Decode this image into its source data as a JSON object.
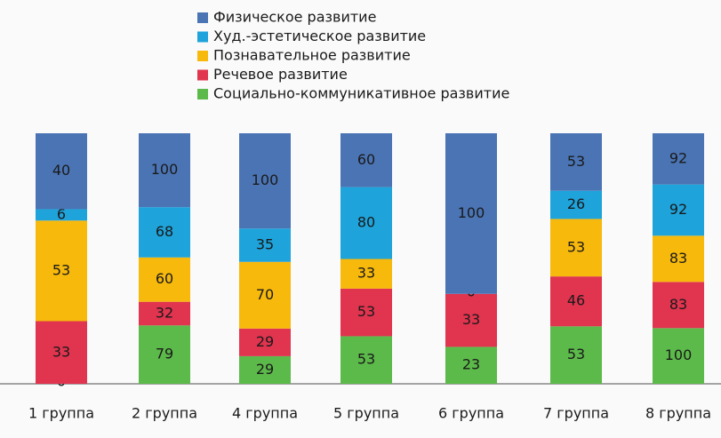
{
  "chart_data": {
    "type": "bar",
    "stack": "percent",
    "categories": [
      "1 группа",
      "2 группа",
      "4 группа",
      "5 группа",
      "6 группа",
      "7 группа",
      "8 группа"
    ],
    "series": [
      {
        "name": "Физическое развитие",
        "color": "#4a74b4",
        "values": [
          40,
          100,
          100,
          60,
          100,
          53,
          92
        ]
      },
      {
        "name": "Худ.-эстетическое развитие",
        "color": "#1ea3db",
        "values": [
          6,
          68,
          35,
          80,
          null,
          26,
          92
        ]
      },
      {
        "name": "Познавательное развитие",
        "color": "#f7b90c",
        "values": [
          53,
          60,
          70,
          33,
          0,
          53,
          83
        ]
      },
      {
        "name": "Речевое развитие",
        "color": "#e0344f",
        "values": [
          33,
          32,
          29,
          53,
          33,
          46,
          83
        ]
      },
      {
        "name": "Социально-коммуникативное развитие",
        "color": "#5cba4a",
        "values": [
          0,
          79,
          29,
          53,
          23,
          53,
          100
        ]
      }
    ]
  }
}
